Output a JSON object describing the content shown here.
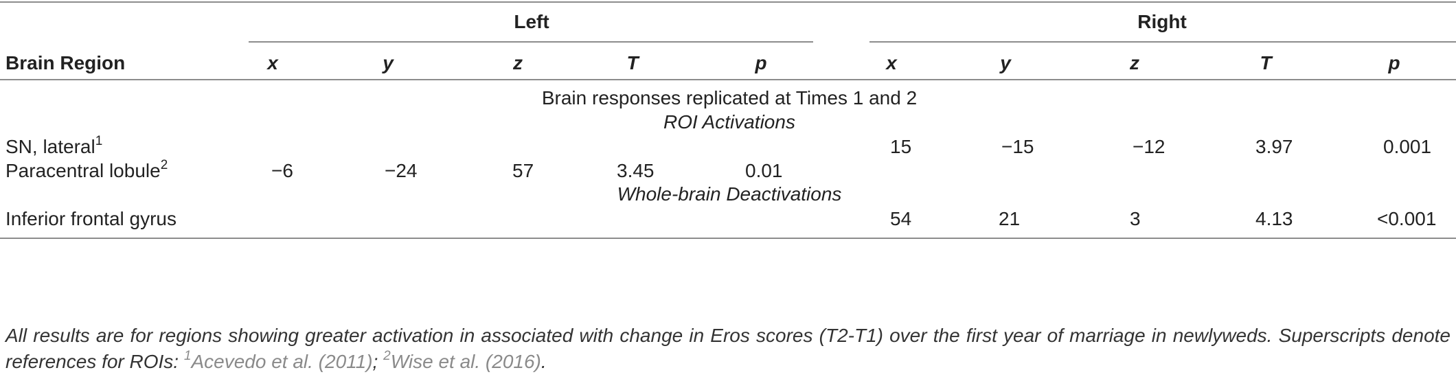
{
  "table": {
    "group_headers": {
      "left": "Left",
      "right": "Right"
    },
    "column_headers": {
      "region": "Brain Region",
      "left": [
        "x",
        "y",
        "z",
        "T",
        "p"
      ],
      "right": [
        "x",
        "y",
        "z",
        "T",
        "p"
      ]
    },
    "section_title": "Brain responses replicated at Times 1 and 2",
    "subsections": [
      "ROI Activations",
      "Whole-brain Deactivations"
    ],
    "rows": [
      {
        "region": "SN, lateral",
        "sup": "1",
        "left": [
          "",
          "",
          "",
          "",
          ""
        ],
        "right": [
          "15",
          "−15",
          "−12",
          "3.97",
          "0.001"
        ]
      },
      {
        "region": "Paracentral lobule",
        "sup": "2",
        "left": [
          "−6",
          "−24",
          "57",
          "3.45",
          "0.01"
        ],
        "right": [
          "",
          "",
          "",
          "",
          ""
        ]
      },
      {
        "region": "Inferior frontal gyrus",
        "sup": "",
        "left": [
          "",
          "",
          "",
          "",
          ""
        ],
        "right": [
          "54",
          "21",
          "3",
          "4.13",
          "<0.001"
        ]
      }
    ],
    "footnote": {
      "text": "All results are for regions showing greater activation in associated with change in Eros scores (T2-T1) over the first year of marriage in newlyweds. Superscripts denote references for ROIs: ",
      "ref1_sup": "1",
      "ref1": "Acevedo et al. (2011)",
      "separator": "; ",
      "ref2_sup": "2",
      "ref2": "Wise et al. (2016)",
      "end": "."
    }
  }
}
